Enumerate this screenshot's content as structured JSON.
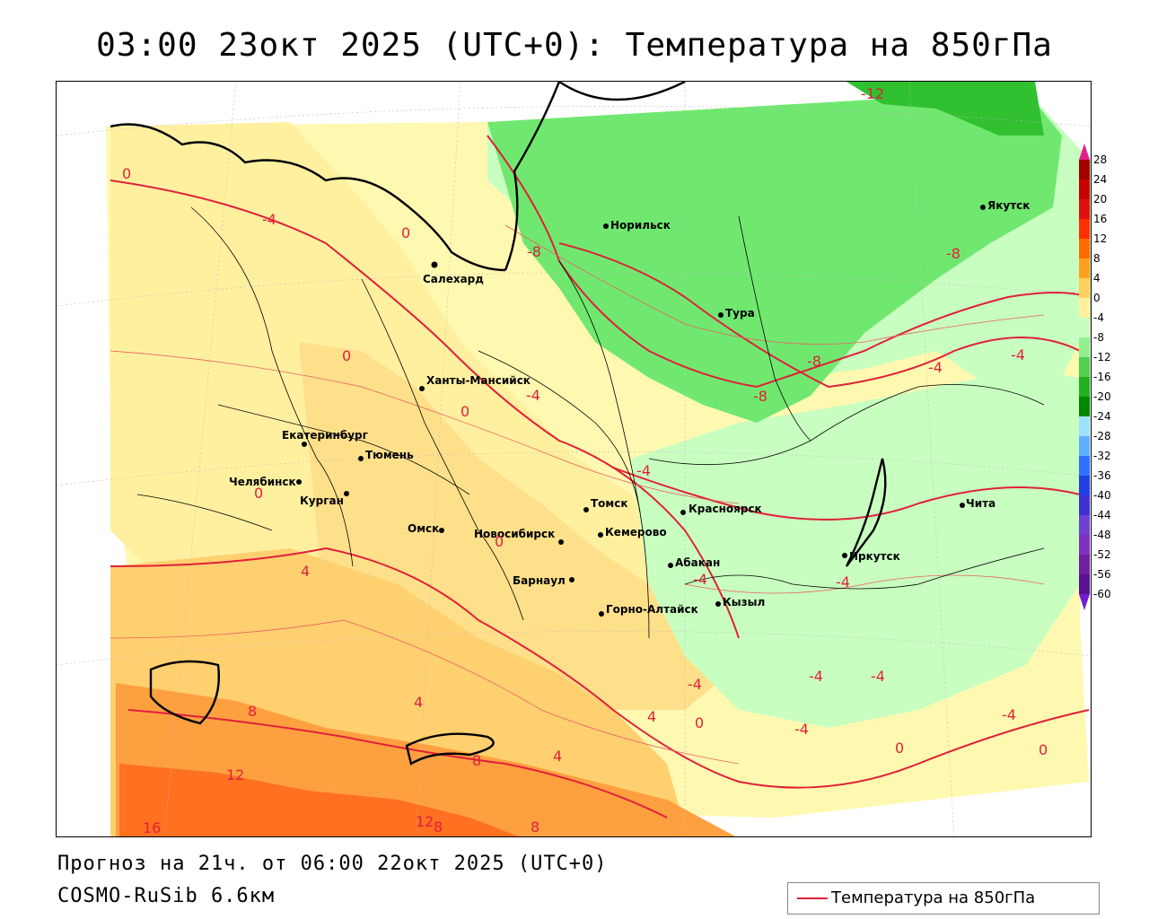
{
  "title": "03:00 23окт 2025 (UTC+0): Температура на 850гПа",
  "footer": {
    "forecast": "Прогноз на 21ч. от 06:00 22окт 2025 (UTC+0)",
    "model": "COSMO-RuSib 6.6км"
  },
  "legend": {
    "label": "Температура на 850гПа",
    "line_color": "#e0203a"
  },
  "colorbar": {
    "labels": [
      "28",
      "24",
      "20",
      "16",
      "12",
      "8",
      "4",
      "0",
      "-4",
      "-8",
      "-12",
      "-16",
      "-20",
      "-24",
      "-28",
      "-32",
      "-36",
      "-40",
      "-44",
      "-48",
      "-52",
      "-56",
      "-60"
    ],
    "colors": [
      "#a00000",
      "#c80000",
      "#e01010",
      "#ff3000",
      "#ff6a00",
      "#ffa020",
      "#ffd060",
      "#fff0a0",
      "#c8ffc0",
      "#90f090",
      "#50d050",
      "#20b020",
      "#008800",
      "#a0e0ff",
      "#60b0ff",
      "#3070ff",
      "#2040e0",
      "#4030d0",
      "#7040d0",
      "#8030c0",
      "#7020a0",
      "#5a1090"
    ]
  },
  "cities": [
    {
      "name": "Салехард"
    },
    {
      "name": "Норильск"
    },
    {
      "name": "Якутск"
    },
    {
      "name": "Тура"
    },
    {
      "name": "Ханты-Мансийск"
    },
    {
      "name": "Екатеринбург"
    },
    {
      "name": "Тюмень"
    },
    {
      "name": "Челябинск"
    },
    {
      "name": "Курган"
    },
    {
      "name": "Омск"
    },
    {
      "name": "Новосибирск"
    },
    {
      "name": "Томск"
    },
    {
      "name": "Кемерово"
    },
    {
      "name": "Красноярск"
    },
    {
      "name": "Барнаул"
    },
    {
      "name": "Абакан"
    },
    {
      "name": "Иркутск"
    },
    {
      "name": "Чита"
    },
    {
      "name": "Кызыл"
    },
    {
      "name": "Горно-Алтайск"
    }
  ],
  "isolines": [
    "-12",
    "-8",
    "-8",
    "-8",
    "-8",
    "-4",
    "-4",
    "-4",
    "-4",
    "-4",
    "-4",
    "-4",
    "-4",
    "-4",
    "-4",
    "-4",
    "-4",
    "0",
    "0",
    "0",
    "0",
    "0",
    "0",
    "0",
    "0",
    "0",
    "4",
    "4",
    "4",
    "4",
    "8",
    "8",
    "8",
    "12",
    "12",
    "16",
    "8"
  ]
}
